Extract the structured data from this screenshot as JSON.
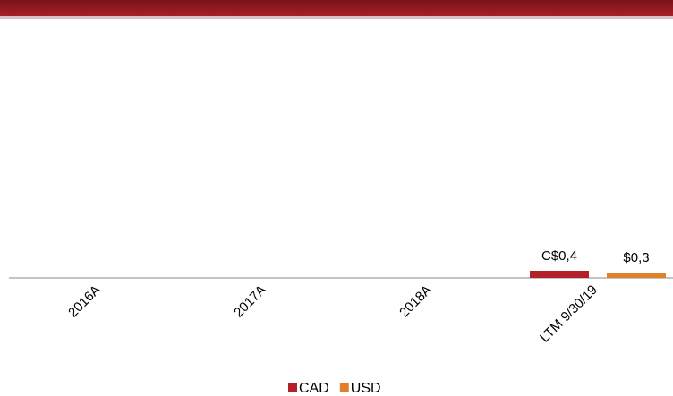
{
  "chart_data": {
    "type": "bar",
    "categories": [
      "2016A",
      "2017A",
      "2018A",
      "LTM 9/30/19"
    ],
    "series": [
      {
        "name": "CAD",
        "color": "#b3202a",
        "values": [
          null,
          null,
          null,
          0.4
        ],
        "value_labels": [
          null,
          null,
          null,
          "C$0,4"
        ]
      },
      {
        "name": "USD",
        "color": "#e0802a",
        "values": [
          null,
          null,
          null,
          0.3
        ],
        "value_labels": [
          null,
          null,
          null,
          "$0,3"
        ]
      }
    ],
    "legend": "bottom"
  }
}
